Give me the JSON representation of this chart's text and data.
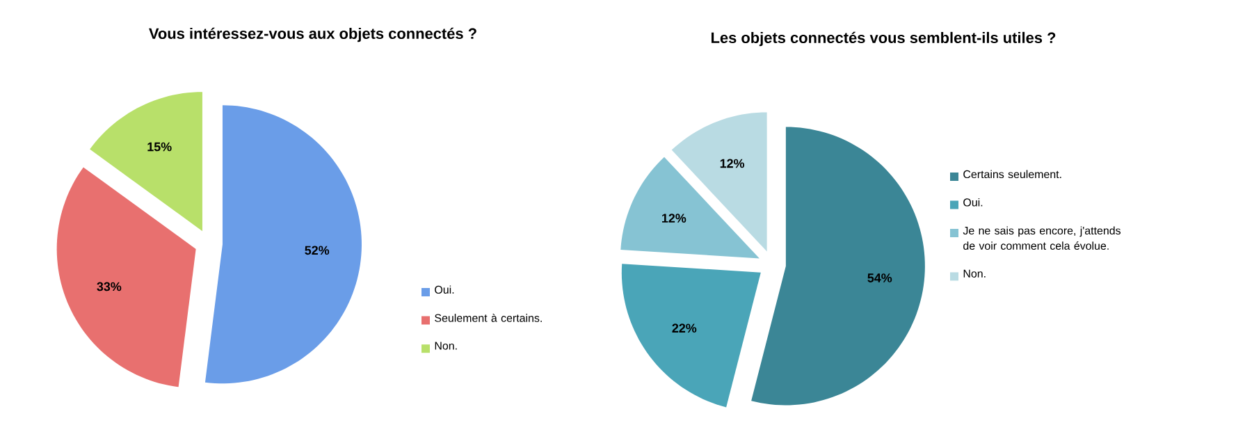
{
  "chart_data": [
    {
      "type": "pie",
      "title": "Vous intéressez-vous aux objets connectés ?",
      "categories": [
        "Oui.",
        "Seulement à certains.",
        "Non."
      ],
      "values": [
        52,
        33,
        15
      ],
      "colors": [
        "#6a9de8",
        "#e8706f",
        "#b8e06a"
      ],
      "value_labels": [
        "52%",
        "33%",
        "15%"
      ],
      "legend": "right"
    },
    {
      "type": "pie",
      "title": "Les objets connectés vous semblent-ils utiles ?",
      "categories": [
        "Certains seulement.",
        "Oui.",
        "Je ne sais pas encore, j'attends de voir comment cela évolue.",
        "Non."
      ],
      "values": [
        54,
        22,
        12,
        12
      ],
      "colors": [
        "#3b8696",
        "#4aa5b8",
        "#86c3d3",
        "#b9dbe3"
      ],
      "value_labels": [
        "54%",
        "22%",
        "12%",
        "12%"
      ],
      "legend": "right"
    }
  ]
}
